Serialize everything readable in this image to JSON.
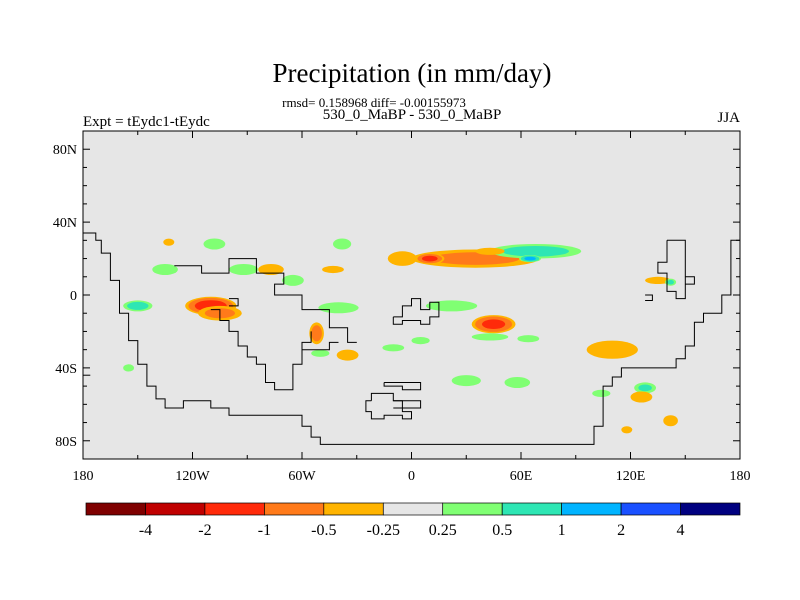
{
  "title": "Precipitation (in mm/day)",
  "stats": "rmsd= 0.158968 diff= -0.00155973",
  "subtitle": "530_0_MaBP - 530_0_MaBP",
  "left_label": "Expt = tEydc1-tEydc",
  "right_label": "JJA",
  "colors": {
    "background": "#e6e6e6",
    "frame": "#000000",
    "coast": "#000000"
  },
  "y_ticks": [
    "80N",
    "40N",
    "0",
    "40S",
    "80S"
  ],
  "x_ticks": [
    "180",
    "120W",
    "60W",
    "0",
    "60E",
    "120E",
    "180"
  ],
  "colorbar": {
    "colors": [
      "#7f0000",
      "#c00000",
      "#ff2a0a",
      "#ff7a1a",
      "#ffb400",
      "#e6e6e6",
      "#80ff73",
      "#2ee6b4",
      "#00b4ff",
      "#1a50ff",
      "#000080"
    ],
    "labels": [
      "-4",
      "-2",
      "-1",
      "-0.5",
      "-0.25",
      "0.25",
      "0.5",
      "1",
      "2",
      "4"
    ]
  },
  "chart_data": {
    "type": "heatmap",
    "title": "Precipitation (in mm/day)",
    "units": "mm/day",
    "season": "JJA",
    "xlim": [
      -180,
      180
    ],
    "ylim": [
      -90,
      90
    ],
    "levels": [
      -4,
      -2,
      -1,
      -0.5,
      -0.25,
      0.25,
      0.5,
      1,
      2,
      4
    ],
    "anomalies": [
      {
        "lon": -110,
        "lat": -6,
        "dlon": 14,
        "dlat": 5,
        "value": -1.5
      },
      {
        "lon": -105,
        "lat": -10,
        "dlon": 12,
        "dlat": 4,
        "value": -0.6
      },
      {
        "lon": -150,
        "lat": -6,
        "dlon": 8,
        "dlat": 3,
        "value": 0.7
      },
      {
        "lon": -135,
        "lat": 14,
        "dlon": 7,
        "dlat": 3,
        "value": 0.4
      },
      {
        "lon": -92,
        "lat": 14,
        "dlon": 8,
        "dlat": 3,
        "value": 0.3
      },
      {
        "lon": -77,
        "lat": 14,
        "dlon": 7,
        "dlat": 3,
        "value": -0.3
      },
      {
        "lon": -108,
        "lat": 28,
        "dlon": 6,
        "dlat": 3,
        "value": 0.3
      },
      {
        "lon": -133,
        "lat": 29,
        "dlon": 3,
        "dlat": 2,
        "value": -0.3
      },
      {
        "lon": -65,
        "lat": 8,
        "dlon": 6,
        "dlat": 3,
        "value": 0.3
      },
      {
        "lon": -43,
        "lat": 14,
        "dlon": 6,
        "dlat": 2,
        "value": -0.3
      },
      {
        "lon": -38,
        "lat": 28,
        "dlon": 5,
        "dlat": 3,
        "value": 0.3
      },
      {
        "lon": -5,
        "lat": 20,
        "dlon": 8,
        "dlat": 4,
        "value": -0.3
      },
      {
        "lon": -40,
        "lat": -7,
        "dlon": 11,
        "dlat": 3,
        "value": 0.3
      },
      {
        "lon": -52,
        "lat": -21,
        "dlon": 4,
        "dlat": 6,
        "value": -0.7
      },
      {
        "lon": -50,
        "lat": -32,
        "dlon": 5,
        "dlat": 2,
        "value": 0.3
      },
      {
        "lon": -35,
        "lat": -33,
        "dlon": 6,
        "dlat": 3,
        "value": -0.4
      },
      {
        "lon": -10,
        "lat": -29,
        "dlon": 6,
        "dlat": 2,
        "value": 0.3
      },
      {
        "lon": 5,
        "lat": -25,
        "dlon": 5,
        "dlat": 2,
        "value": 0.3
      },
      {
        "lon": 35,
        "lat": 20,
        "dlon": 35,
        "dlat": 5,
        "value": -0.6
      },
      {
        "lon": 10,
        "lat": 20,
        "dlon": 8,
        "dlat": 3,
        "value": -1.2
      },
      {
        "lon": 68,
        "lat": 24,
        "dlon": 25,
        "dlat": 4,
        "value": 0.7
      },
      {
        "lon": 65,
        "lat": 20,
        "dlon": 6,
        "dlat": 2,
        "value": 1.2
      },
      {
        "lon": 43,
        "lat": 24,
        "dlon": 8,
        "dlat": 2,
        "value": -0.4
      },
      {
        "lon": 22,
        "lat": -6,
        "dlon": 14,
        "dlat": 3,
        "value": 0.3
      },
      {
        "lon": 45,
        "lat": -16,
        "dlon": 12,
        "dlat": 5,
        "value": -1.2
      },
      {
        "lon": 43,
        "lat": -23,
        "dlon": 10,
        "dlat": 2,
        "value": 0.3
      },
      {
        "lon": 64,
        "lat": -24,
        "dlon": 6,
        "dlat": 2,
        "value": 0.3
      },
      {
        "lon": 110,
        "lat": -30,
        "dlon": 14,
        "dlat": 5,
        "value": -0.4
      },
      {
        "lon": 135,
        "lat": 8,
        "dlon": 7,
        "dlat": 2,
        "value": -0.3
      },
      {
        "lon": 142,
        "lat": 7,
        "dlon": 3,
        "dlat": 2,
        "value": 0.5
      },
      {
        "lon": 30,
        "lat": -47,
        "dlon": 8,
        "dlat": 3,
        "value": 0.3
      },
      {
        "lon": 58,
        "lat": -48,
        "dlon": 7,
        "dlat": 3,
        "value": 0.3
      },
      {
        "lon": 104,
        "lat": -54,
        "dlon": 5,
        "dlat": 2,
        "value": 0.3
      },
      {
        "lon": 128,
        "lat": -51,
        "dlon": 6,
        "dlat": 3,
        "value": 0.5
      },
      {
        "lon": 126,
        "lat": -56,
        "dlon": 6,
        "dlat": 3,
        "value": -0.3
      },
      {
        "lon": 118,
        "lat": -74,
        "dlon": 3,
        "dlat": 2,
        "value": -0.3
      },
      {
        "lon": 142,
        "lat": -69,
        "dlon": 4,
        "dlat": 3,
        "value": -0.4
      },
      {
        "lon": -155,
        "lat": -40,
        "dlon": 3,
        "dlat": 2,
        "value": 0.3
      }
    ],
    "coastlines": [
      [
        [
          -180,
          34
        ],
        [
          -173,
          34
        ],
        [
          -173,
          30
        ],
        [
          -170,
          30
        ],
        [
          -170,
          23
        ],
        [
          -165,
          23
        ],
        [
          -165,
          8
        ],
        [
          -160,
          8
        ],
        [
          -160,
          -10
        ],
        [
          -155,
          -10
        ],
        [
          -155,
          -25
        ],
        [
          -150,
          -25
        ],
        [
          -150,
          -38
        ],
        [
          -145,
          -38
        ],
        [
          -145,
          -50
        ],
        [
          -140,
          -50
        ],
        [
          -140,
          -57
        ],
        [
          -135,
          -57
        ],
        [
          -135,
          -62
        ],
        [
          -125,
          -62
        ],
        [
          -125,
          -58
        ],
        [
          -110,
          -58
        ],
        [
          -110,
          -62
        ],
        [
          -100,
          -62
        ],
        [
          -100,
          -66
        ],
        [
          -60,
          -66
        ],
        [
          -60,
          -72
        ],
        [
          -55,
          -72
        ],
        [
          -55,
          -78
        ],
        [
          -50,
          -78
        ],
        [
          -50,
          -82
        ],
        [
          100,
          -82
        ],
        [
          100,
          -72
        ],
        [
          105,
          -72
        ],
        [
          105,
          -50
        ],
        [
          110,
          -50
        ],
        [
          110,
          -45
        ],
        [
          115,
          -45
        ],
        [
          115,
          -40
        ],
        [
          145,
          -40
        ],
        [
          145,
          -35
        ],
        [
          150,
          -35
        ],
        [
          150,
          -28
        ],
        [
          155,
          -28
        ],
        [
          155,
          -15
        ],
        [
          160,
          -15
        ],
        [
          160,
          -10
        ],
        [
          170,
          -10
        ],
        [
          170,
          0
        ],
        [
          175,
          0
        ],
        [
          175,
          30
        ],
        [
          180,
          30
        ]
      ],
      [
        [
          -130,
          16
        ],
        [
          -115,
          16
        ],
        [
          -115,
          12
        ],
        [
          -100,
          12
        ],
        [
          -100,
          20
        ],
        [
          -85,
          20
        ],
        [
          -85,
          12
        ],
        [
          -70,
          12
        ],
        [
          -70,
          6
        ],
        [
          -75,
          6
        ],
        [
          -75,
          0
        ],
        [
          -60,
          0
        ],
        [
          -60,
          -8
        ],
        [
          -45,
          -8
        ],
        [
          -45,
          -18
        ],
        [
          -35,
          -18
        ],
        [
          -35,
          -26
        ],
        [
          -30,
          -26
        ]
      ],
      [
        [
          -110,
          -8
        ],
        [
          -105,
          -8
        ],
        [
          -105,
          -14
        ],
        [
          -100,
          -14
        ],
        [
          -100,
          -20
        ],
        [
          -95,
          -20
        ],
        [
          -95,
          -28
        ],
        [
          -90,
          -28
        ],
        [
          -90,
          -34
        ],
        [
          -85,
          -34
        ],
        [
          -85,
          -38
        ],
        [
          -80,
          -38
        ],
        [
          -80,
          -48
        ],
        [
          -75,
          -48
        ],
        [
          -75,
          -52
        ],
        [
          -65,
          -52
        ],
        [
          -65,
          -38
        ],
        [
          -60,
          -38
        ],
        [
          -60,
          -26
        ],
        [
          -55,
          -26
        ],
        [
          -55,
          -20
        ]
      ],
      [
        [
          -60,
          -30
        ],
        [
          -45,
          -30
        ],
        [
          -45,
          -26
        ],
        [
          -40,
          -26
        ]
      ],
      [
        [
          -10,
          -12
        ],
        [
          -5,
          -12
        ],
        [
          -5,
          -6
        ],
        [
          0,
          -6
        ],
        [
          0,
          -2
        ],
        [
          5,
          -2
        ],
        [
          5,
          -8
        ],
        [
          10,
          -8
        ],
        [
          10,
          -4
        ],
        [
          15,
          -4
        ],
        [
          15,
          -12
        ],
        [
          10,
          -12
        ],
        [
          10,
          -16
        ],
        [
          5,
          -16
        ],
        [
          5,
          -14
        ],
        [
          -5,
          -14
        ],
        [
          -5,
          -16
        ],
        [
          -10,
          -16
        ],
        [
          -10,
          -12
        ]
      ],
      [
        [
          -22,
          -58
        ],
        [
          -22,
          -54
        ],
        [
          -10,
          -54
        ],
        [
          -10,
          -58
        ],
        [
          -5,
          -58
        ],
        [
          -5,
          -64
        ],
        [
          0,
          -64
        ],
        [
          0,
          -68
        ],
        [
          -5,
          -68
        ],
        [
          -5,
          -66
        ],
        [
          -15,
          -66
        ],
        [
          -15,
          -68
        ],
        [
          -22,
          -68
        ],
        [
          -22,
          -64
        ],
        [
          -25,
          -64
        ],
        [
          -25,
          -58
        ],
        [
          -22,
          -58
        ]
      ],
      [
        [
          -15,
          -48
        ],
        [
          5,
          -48
        ],
        [
          5,
          -52
        ],
        [
          -5,
          -52
        ],
        [
          -5,
          -50
        ],
        [
          -15,
          -50
        ],
        [
          -15,
          -48
        ]
      ],
      [
        [
          -10,
          -58
        ],
        [
          5,
          -58
        ],
        [
          5,
          -62
        ],
        [
          -10,
          -62
        ]
      ],
      [
        [
          140,
          30
        ],
        [
          150,
          30
        ],
        [
          150,
          -2
        ],
        [
          145,
          -2
        ],
        [
          145,
          2
        ],
        [
          140,
          2
        ],
        [
          140,
          12
        ],
        [
          135,
          12
        ],
        [
          135,
          18
        ],
        [
          140,
          18
        ],
        [
          140,
          30
        ]
      ],
      [
        [
          150,
          10
        ],
        [
          155,
          10
        ],
        [
          155,
          6
        ],
        [
          150,
          6
        ]
      ],
      [
        [
          128,
          -3
        ],
        [
          132,
          -3
        ],
        [
          132,
          0
        ],
        [
          128,
          0
        ]
      ],
      [
        [
          -180,
          -44
        ],
        [
          -176,
          -44
        ]
      ],
      [
        [
          -100,
          -2
        ],
        [
          -95,
          -2
        ],
        [
          -95,
          -6
        ],
        [
          -100,
          -6
        ]
      ]
    ]
  }
}
